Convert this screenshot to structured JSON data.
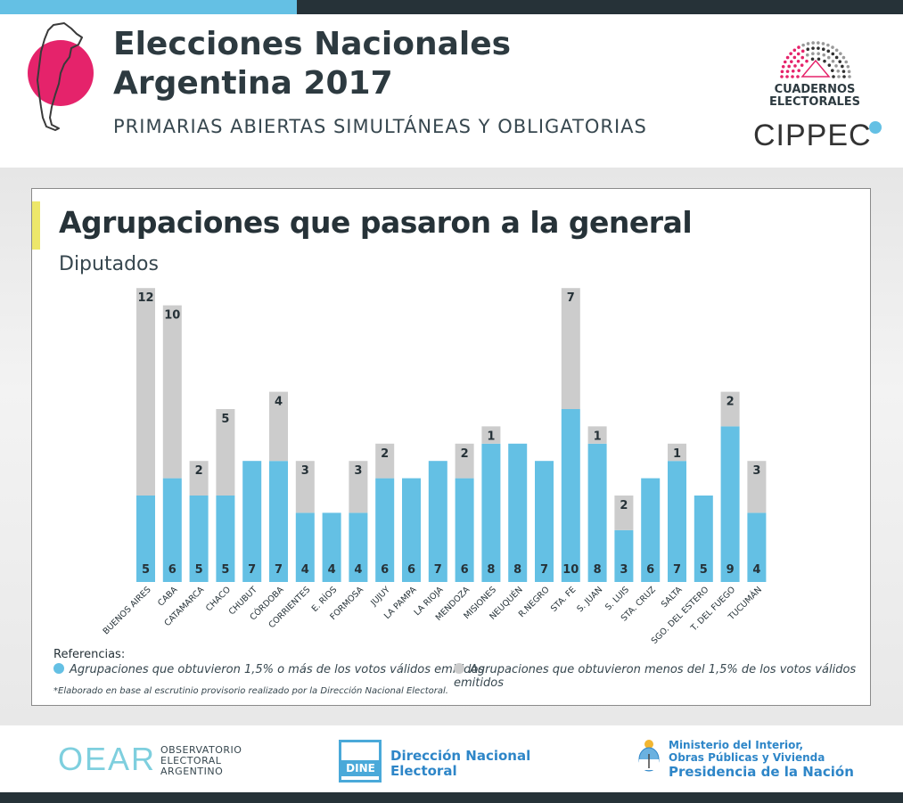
{
  "header": {
    "title_line1": "Elecciones Nacionales",
    "title_line2": "Argentina 2017",
    "subtitle": "PRIMARIAS ABIERTAS SIMULTÁNEAS Y OBLIGATORIAS",
    "cuadernos_line1": "CUADERNOS",
    "cuadernos_line2": "ELECTORALES",
    "cippec": "CIPPEC"
  },
  "chart_data": {
    "type": "bar",
    "stacked": true,
    "title": "Agrupaciones que pasaron a la general",
    "subtitle": "Diputados",
    "categories": [
      "BUENOS AIRES",
      "CABA",
      "CATAMARCA",
      "CHACO",
      "CHUBUT",
      "CÓRDOBA",
      "CORRIENTES",
      "E. RÍOS",
      "FORMOSA",
      "JUJUY",
      "LA PAMPA",
      "LA RIOJA",
      "MENDOZA",
      "MISIONES",
      "NEUQUÉN",
      "R.NEGRO",
      "STA. FE",
      "S. JUAN",
      "S. LUIS",
      "STA. CRUZ",
      "SALTA",
      "SGO. DEL ESTERO",
      "T. DEL FUEGO",
      "TUCUMÁN"
    ],
    "series": [
      {
        "name": "Agrupaciones que obtuvieron 1,5% o más de los votos válidos emitidos",
        "color": "#64c0e4",
        "values": [
          5,
          6,
          5,
          5,
          7,
          7,
          4,
          4,
          4,
          6,
          6,
          7,
          6,
          8,
          8,
          7,
          10,
          8,
          3,
          6,
          7,
          5,
          9,
          4
        ]
      },
      {
        "name": "Agrupaciones que obtuvieron menos del 1,5% de los votos válidos emitidos",
        "color": "#cccccc",
        "values": [
          12,
          10,
          2,
          5,
          0,
          4,
          3,
          0,
          3,
          2,
          0,
          0,
          2,
          1,
          0,
          0,
          7,
          1,
          2,
          0,
          1,
          0,
          2,
          3
        ]
      }
    ],
    "ylim": [
      0,
      17
    ],
    "grid": false,
    "legend_position": "bottom-left"
  },
  "legend": {
    "heading": "Referencias:",
    "item1": "Agrupaciones que obtuvieron 1,5% o más de los votos válidos emitidos",
    "item2": "Agrupaciones que obtuvieron menos del 1,5% de los votos válidos emitidos"
  },
  "note": "*Elaborado en base al escrutinio provisorio realizado por la Dirección Nacional Electoral.",
  "footer": {
    "oear_logo": "OEAR",
    "oear_line1": "OBSERVATORIO",
    "oear_line2": "ELECTORAL",
    "oear_line3": "ARGENTINO",
    "dine_logo": "DINE",
    "dine_line1": "Dirección Nacional",
    "dine_line2": "Electoral",
    "min_line1": "Ministerio del Interior,",
    "min_line2": "Obras Públicas y Vivienda",
    "min_line3": "Presidencia de la Nación"
  }
}
